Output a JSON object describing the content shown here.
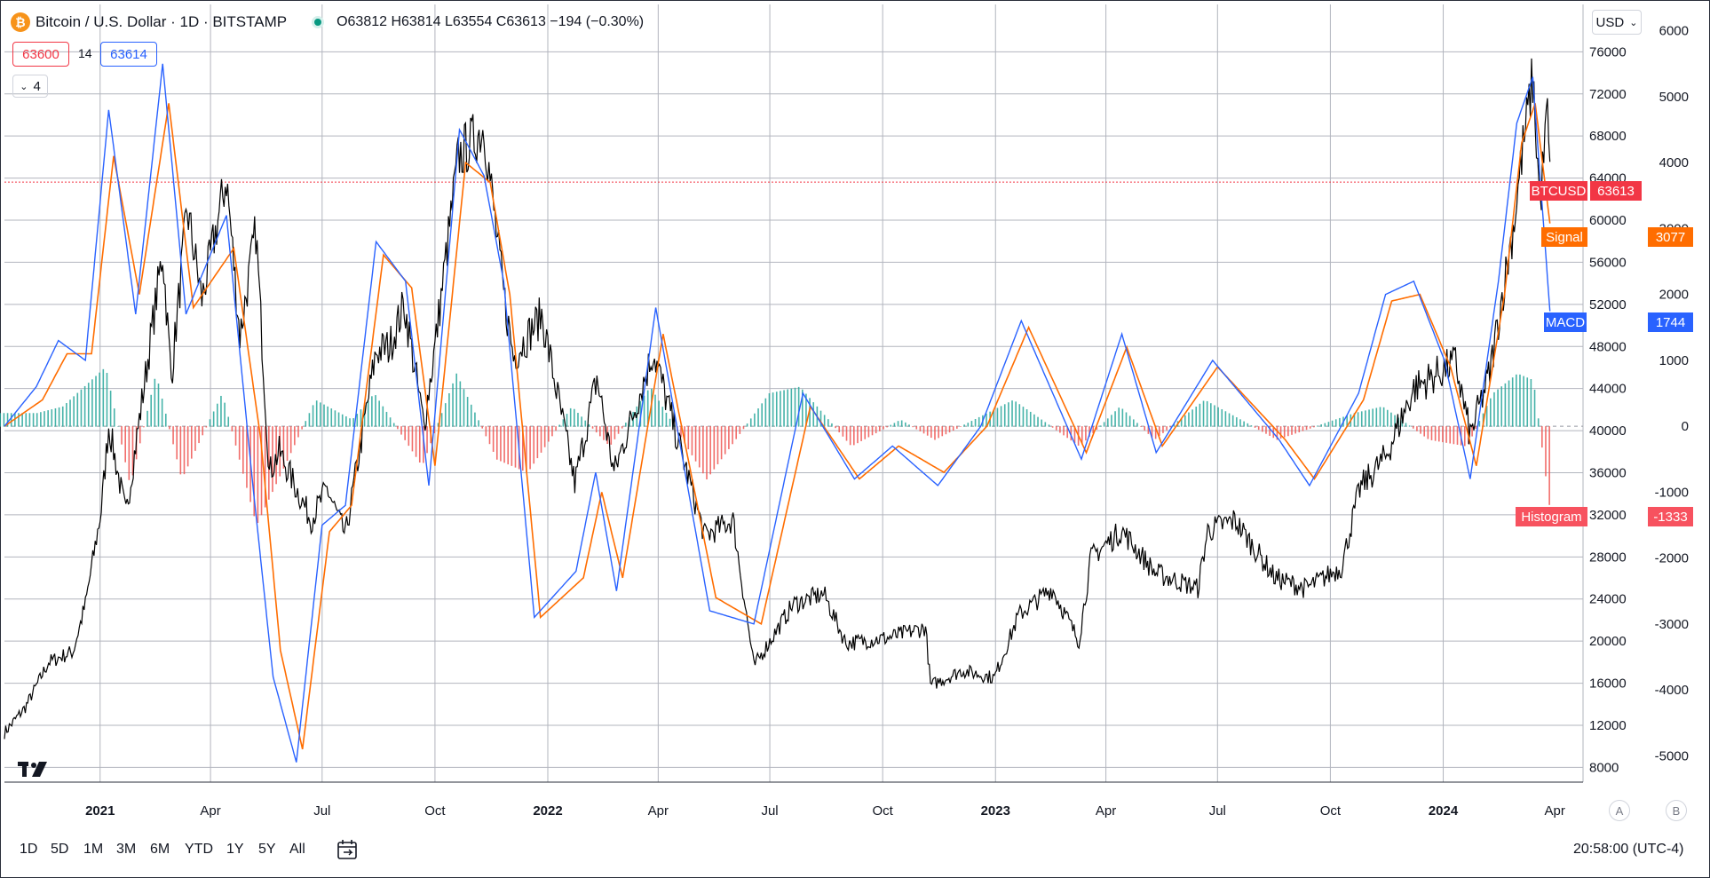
{
  "header": {
    "coin_icon": "bitcoin-icon",
    "coin_glyph": "₿",
    "title": "Bitcoin / U.S. Dollar · 1D · BITSTAMP",
    "ohlc": "O63812 H63814 L63554 C63613 −194 (−0.30%)",
    "status_color": "#089981"
  },
  "indicator_inputs": {
    "fast": "63600",
    "length": "14",
    "slow": "63614"
  },
  "collapse": {
    "icon": "chevron-down-icon",
    "count": "4"
  },
  "currency": "USD",
  "labels": {
    "btcusd_name": "BTCUSD",
    "btcusd_value": "63613",
    "signal_name": "Signal",
    "signal_value": "3077",
    "macd_name": "MACD",
    "macd_value": "1744",
    "hist_name": "Histogram",
    "hist_value": "-1333"
  },
  "colors": {
    "price": "#000000",
    "macd": "#2962ff",
    "signal": "#ff6d00",
    "hist_pos": "#26a69a",
    "hist_neg": "#ef5350",
    "last_price": "#f23645"
  },
  "bottom": {
    "timeframes": [
      "1D",
      "5D",
      "1M",
      "3M",
      "6M",
      "YTD",
      "1Y",
      "5Y",
      "All"
    ],
    "calendar_icon": "calendar-range-icon",
    "clock": "20:58:00 (UTC-4)",
    "axis_buttons": [
      "A",
      "B"
    ]
  },
  "chart_data": {
    "type": "line",
    "title": "Bitcoin / U.S. Dollar · 1D · BITSTAMP",
    "x_ticks": [
      "2021",
      "Apr",
      "Jul",
      "Oct",
      "2022",
      "Apr",
      "Jul",
      "Oct",
      "2023",
      "Apr",
      "Jul",
      "Oct",
      "2024",
      "Apr"
    ],
    "price_axis": {
      "ticks": [
        76000,
        72000,
        68000,
        64000,
        60000,
        56000,
        52000,
        48000,
        44000,
        40000,
        36000,
        32000,
        28000,
        24000,
        20000,
        16000,
        12000,
        8000
      ],
      "range": [
        6600,
        80500
      ]
    },
    "macd_axis": {
      "ticks": [
        6000,
        5000,
        4000,
        3000,
        2000,
        1000,
        0,
        -1000,
        -2000,
        -3000,
        -4000,
        -5000
      ],
      "range": [
        -5400,
        6400
      ]
    },
    "series": [
      {
        "name": "BTCUSD",
        "axis": "price",
        "color": "#000000",
        "points": [
          [
            "2020-10-15",
            11300
          ],
          [
            "2020-11-01",
            13700
          ],
          [
            "2020-11-20",
            18000
          ],
          [
            "2020-12-10",
            19000
          ],
          [
            "2020-12-20",
            23500
          ],
          [
            "2021-01-02",
            32500
          ],
          [
            "2021-01-08",
            40500
          ],
          [
            "2021-01-22",
            32000
          ],
          [
            "2021-02-08",
            46000
          ],
          [
            "2021-02-21",
            57000
          ],
          [
            "2021-02-28",
            45000
          ],
          [
            "2021-03-13",
            61000
          ],
          [
            "2021-03-25",
            52500
          ],
          [
            "2021-04-14",
            64000
          ],
          [
            "2021-04-25",
            49000
          ],
          [
            "2021-05-08",
            59000
          ],
          [
            "2021-05-19",
            36000
          ],
          [
            "2021-05-27",
            38000
          ],
          [
            "2021-06-22",
            31500
          ],
          [
            "2021-07-05",
            34500
          ],
          [
            "2021-07-20",
            30000
          ],
          [
            "2021-08-14",
            47500
          ],
          [
            "2021-08-25",
            48000
          ],
          [
            "2021-09-06",
            52000
          ],
          [
            "2021-09-22",
            40500
          ],
          [
            "2021-10-01",
            48000
          ],
          [
            "2021-10-20",
            66000
          ],
          [
            "2021-11-10",
            68800
          ],
          [
            "2021-11-26",
            53000
          ],
          [
            "2021-12-04",
            47000
          ],
          [
            "2021-12-27",
            51000
          ],
          [
            "2022-01-23",
            35000
          ],
          [
            "2022-02-10",
            45000
          ],
          [
            "2022-02-24",
            36000
          ],
          [
            "2022-03-28",
            47500
          ],
          [
            "2022-04-10",
            42000
          ],
          [
            "2022-05-09",
            30000
          ],
          [
            "2022-06-01",
            31500
          ],
          [
            "2022-06-18",
            17600
          ],
          [
            "2022-07-20",
            23500
          ],
          [
            "2022-08-14",
            24500
          ],
          [
            "2022-09-01",
            19800
          ],
          [
            "2022-10-05",
            20300
          ],
          [
            "2022-11-05",
            21300
          ],
          [
            "2022-11-09",
            15800
          ],
          [
            "2022-12-05",
            17200
          ],
          [
            "2022-12-31",
            16500
          ],
          [
            "2023-01-20",
            22500
          ],
          [
            "2023-02-16",
            25000
          ],
          [
            "2023-03-10",
            20000
          ],
          [
            "2023-03-20",
            28000
          ],
          [
            "2023-04-14",
            30500
          ],
          [
            "2023-05-11",
            26500
          ],
          [
            "2023-06-15",
            25000
          ],
          [
            "2023-06-23",
            30500
          ],
          [
            "2023-07-15",
            31500
          ],
          [
            "2023-08-17",
            26000
          ],
          [
            "2023-09-11",
            25000
          ],
          [
            "2023-10-10",
            27000
          ],
          [
            "2023-10-25",
            34500
          ],
          [
            "2023-11-15",
            37500
          ],
          [
            "2023-12-08",
            44000
          ],
          [
            "2024-01-11",
            46500
          ],
          [
            "2024-01-23",
            39500
          ],
          [
            "2024-02-08",
            45500
          ],
          [
            "2024-02-28",
            60000
          ],
          [
            "2024-03-05",
            66000
          ],
          [
            "2024-03-14",
            73500
          ],
          [
            "2024-03-20",
            61500
          ],
          [
            "2024-03-26",
            70500
          ],
          [
            "2024-03-28",
            63613
          ]
        ]
      },
      {
        "name": "MACD",
        "axis": "macd",
        "color": "#2962ff",
        "last_value": 1744,
        "points": [
          [
            "2020-10-15",
            0
          ],
          [
            "2020-11-10",
            600
          ],
          [
            "2020-11-28",
            1300
          ],
          [
            "2020-12-20",
            1000
          ],
          [
            "2021-01-08",
            4800
          ],
          [
            "2021-01-30",
            1700
          ],
          [
            "2021-02-21",
            5500
          ],
          [
            "2021-03-12",
            1700
          ],
          [
            "2021-04-14",
            3200
          ],
          [
            "2021-05-05",
            -800
          ],
          [
            "2021-05-22",
            -3800
          ],
          [
            "2021-06-10",
            -5100
          ],
          [
            "2021-07-01",
            -1500
          ],
          [
            "2021-07-20",
            -1200
          ],
          [
            "2021-08-14",
            2800
          ],
          [
            "2021-09-07",
            2200
          ],
          [
            "2021-09-26",
            -900
          ],
          [
            "2021-10-21",
            4500
          ],
          [
            "2021-11-10",
            3800
          ],
          [
            "2021-11-26",
            2200
          ],
          [
            "2021-12-21",
            -2900
          ],
          [
            "2022-01-24",
            -2200
          ],
          [
            "2022-02-09",
            -700
          ],
          [
            "2022-02-26",
            -2500
          ],
          [
            "2022-03-30",
            1800
          ],
          [
            "2022-05-13",
            -2800
          ],
          [
            "2022-06-18",
            -3000
          ],
          [
            "2022-07-28",
            500
          ],
          [
            "2022-09-08",
            -800
          ],
          [
            "2022-10-09",
            -300
          ],
          [
            "2022-11-15",
            -900
          ],
          [
            "2022-12-20",
            0
          ],
          [
            "2023-01-22",
            1600
          ],
          [
            "2023-03-12",
            -500
          ],
          [
            "2023-04-14",
            1400
          ],
          [
            "2023-05-12",
            -400
          ],
          [
            "2023-06-27",
            1000
          ],
          [
            "2023-08-20",
            -200
          ],
          [
            "2023-09-14",
            -900
          ],
          [
            "2023-10-24",
            500
          ],
          [
            "2023-11-15",
            2000
          ],
          [
            "2023-12-08",
            2200
          ],
          [
            "2024-01-02",
            1000
          ],
          [
            "2024-01-23",
            -800
          ],
          [
            "2024-02-15",
            2200
          ],
          [
            "2024-03-01",
            4600
          ],
          [
            "2024-03-14",
            5300
          ],
          [
            "2024-03-28",
            1744
          ]
        ]
      },
      {
        "name": "Signal",
        "axis": "macd",
        "color": "#ff6d00",
        "last_value": 3077,
        "points": [
          [
            "2020-10-15",
            0
          ],
          [
            "2020-11-15",
            400
          ],
          [
            "2020-12-05",
            1100
          ],
          [
            "2020-12-25",
            1100
          ],
          [
            "2021-01-12",
            4100
          ],
          [
            "2021-02-02",
            2000
          ],
          [
            "2021-02-26",
            4900
          ],
          [
            "2021-03-18",
            1800
          ],
          [
            "2021-04-20",
            2700
          ],
          [
            "2021-05-12",
            -200
          ],
          [
            "2021-05-28",
            -3400
          ],
          [
            "2021-06-15",
            -4900
          ],
          [
            "2021-07-07",
            -1600
          ],
          [
            "2021-07-25",
            -1200
          ],
          [
            "2021-08-20",
            2600
          ],
          [
            "2021-09-12",
            2100
          ],
          [
            "2021-10-01",
            -600
          ],
          [
            "2021-10-26",
            4000
          ],
          [
            "2021-11-15",
            3700
          ],
          [
            "2021-12-01",
            2000
          ],
          [
            "2021-12-26",
            -2900
          ],
          [
            "2022-01-30",
            -2300
          ],
          [
            "2022-02-14",
            -1000
          ],
          [
            "2022-03-03",
            -2300
          ],
          [
            "2022-04-05",
            1400
          ],
          [
            "2022-05-18",
            -2600
          ],
          [
            "2022-06-24",
            -3000
          ],
          [
            "2022-08-03",
            300
          ],
          [
            "2022-09-12",
            -800
          ],
          [
            "2022-10-14",
            -300
          ],
          [
            "2022-11-20",
            -700
          ],
          [
            "2022-12-25",
            0
          ],
          [
            "2023-01-28",
            1500
          ],
          [
            "2023-03-16",
            -400
          ],
          [
            "2023-04-18",
            1200
          ],
          [
            "2023-05-17",
            -300
          ],
          [
            "2023-07-01",
            900
          ],
          [
            "2023-08-25",
            -200
          ],
          [
            "2023-09-18",
            -800
          ],
          [
            "2023-10-28",
            400
          ],
          [
            "2023-11-20",
            1900
          ],
          [
            "2023-12-13",
            2000
          ],
          [
            "2024-01-07",
            900
          ],
          [
            "2024-01-28",
            -600
          ],
          [
            "2024-02-20",
            2000
          ],
          [
            "2024-03-05",
            4300
          ],
          [
            "2024-03-16",
            4900
          ],
          [
            "2024-03-28",
            3077
          ]
        ]
      },
      {
        "name": "Histogram",
        "axis": "macd",
        "type": "bar",
        "last_value": -1333,
        "points": [
          [
            "2020-11-10",
            200
          ],
          [
            "2020-12-01",
            300
          ],
          [
            "2021-01-05",
            900
          ],
          [
            "2021-01-25",
            -900
          ],
          [
            "2021-02-15",
            800
          ],
          [
            "2021-03-08",
            -800
          ],
          [
            "2021-04-10",
            500
          ],
          [
            "2021-05-08",
            -1500
          ],
          [
            "2021-06-05",
            -400
          ],
          [
            "2021-06-25",
            400
          ],
          [
            "2021-07-25",
            100
          ],
          [
            "2021-08-12",
            500
          ],
          [
            "2021-09-20",
            -600
          ],
          [
            "2021-10-18",
            800
          ],
          [
            "2021-11-20",
            -500
          ],
          [
            "2021-12-15",
            -700
          ],
          [
            "2022-01-20",
            300
          ],
          [
            "2022-02-20",
            -300
          ],
          [
            "2022-03-25",
            600
          ],
          [
            "2022-05-10",
            -800
          ],
          [
            "2022-06-30",
            500
          ],
          [
            "2022-07-25",
            600
          ],
          [
            "2022-09-05",
            -300
          ],
          [
            "2022-10-15",
            100
          ],
          [
            "2022-11-12",
            -200
          ],
          [
            "2023-01-15",
            400
          ],
          [
            "2023-03-10",
            -300
          ],
          [
            "2023-04-12",
            300
          ],
          [
            "2023-05-10",
            -200
          ],
          [
            "2023-06-20",
            400
          ],
          [
            "2023-08-18",
            -200
          ],
          [
            "2023-10-20",
            200
          ],
          [
            "2023-11-12",
            300
          ],
          [
            "2023-12-20",
            -200
          ],
          [
            "2024-01-20",
            -300
          ],
          [
            "2024-02-10",
            500
          ],
          [
            "2024-03-01",
            800
          ],
          [
            "2024-03-14",
            700
          ],
          [
            "2024-03-28",
            -1333
          ]
        ]
      }
    ],
    "last_price_line": 63613,
    "grid": true,
    "legend": "top-left"
  }
}
